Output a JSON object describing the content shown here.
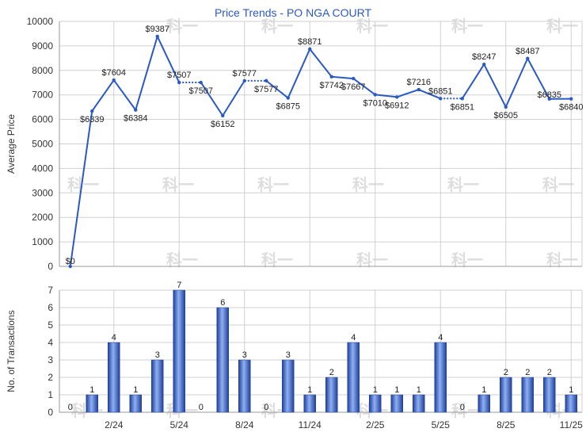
{
  "chart_data": [
    {
      "type": "line",
      "title": "Price Trends - PO NGA COURT",
      "ylabel": "Average Price",
      "ylim": [
        0,
        10000
      ],
      "yticks": [
        0,
        1000,
        2000,
        3000,
        4000,
        5000,
        6000,
        7000,
        8000,
        9000,
        10000
      ],
      "series": [
        {
          "values": [
            0,
            6339,
            7604,
            6384,
            9387,
            7507,
            7507,
            6152,
            7577,
            7577,
            6875,
            8871,
            7742,
            7667,
            7010,
            6912,
            7216,
            6851,
            6851,
            8247,
            6505,
            8487,
            6835,
            6840
          ],
          "labels": [
            "$0",
            "$6339",
            "$7604",
            "$6384",
            "$9387",
            "$7507",
            "$7507",
            "$6152",
            "$7577",
            "$7577",
            "$6875",
            "$8871",
            "$7742",
            "$7667",
            "$7010",
            "$6912",
            "$7216",
            "$6851",
            "$6851",
            "$8247",
            "$6505",
            "$8487",
            "$6835",
            "$6840"
          ],
          "color": "#2b59c3"
        }
      ],
      "grid": true
    },
    {
      "type": "bar",
      "ylabel": "No. of Transactions",
      "ylim": [
        0,
        7
      ],
      "yticks": [
        0,
        1,
        2,
        3,
        4,
        5,
        6,
        7
      ],
      "values": [
        0,
        1,
        4,
        1,
        3,
        7,
        0,
        6,
        3,
        0,
        3,
        1,
        2,
        4,
        1,
        1,
        1,
        4,
        0,
        1,
        2,
        2,
        2,
        1
      ],
      "xtick_labels": [
        "2/24",
        "5/24",
        "8/24",
        "11/24",
        "2/25",
        "5/25",
        "8/25",
        "11/25"
      ],
      "bar_color": "#3b63c9",
      "grid": true
    }
  ],
  "watermark": "科一"
}
